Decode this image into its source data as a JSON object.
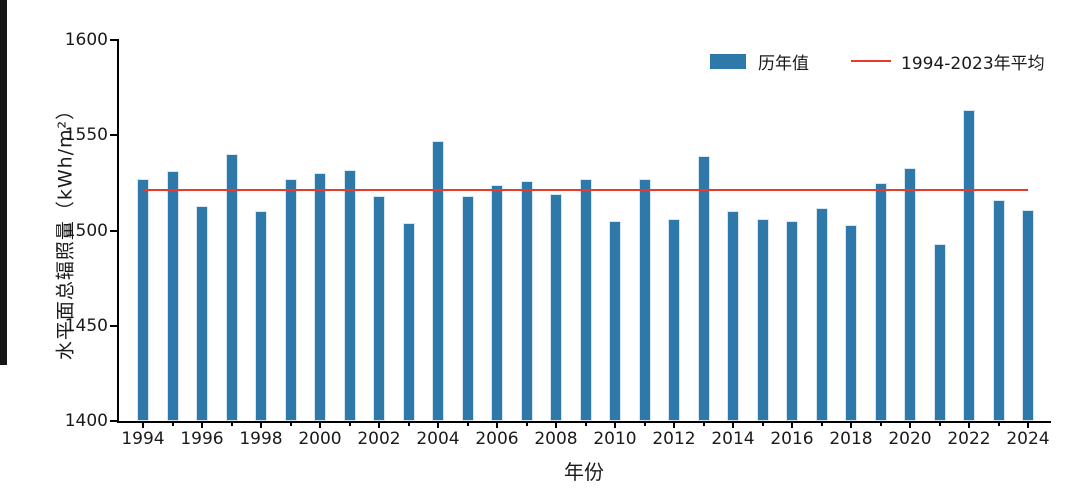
{
  "chart_data": {
    "type": "bar",
    "title": "",
    "xlabel": "年份",
    "ylabel": "水平面总辐照量（kWh/m²）",
    "x": [
      1994,
      1995,
      1996,
      1997,
      1998,
      1999,
      2000,
      2001,
      2002,
      2003,
      2004,
      2005,
      2006,
      2007,
      2008,
      2009,
      2010,
      2011,
      2012,
      2013,
      2014,
      2015,
      2016,
      2017,
      2018,
      2019,
      2020,
      2021,
      2022,
      2023,
      2024
    ],
    "series": [
      {
        "name": "历年值",
        "type": "bar",
        "values": [
          1527,
          1531,
          1513,
          1540,
          1510,
          1527,
          1530,
          1532,
          1518,
          1504,
          1547,
          1518,
          1524,
          1526,
          1519,
          1527,
          1505,
          1527,
          1506,
          1539,
          1510,
          1506,
          1505,
          1512,
          1503,
          1525,
          1533,
          1493,
          1563,
          1516,
          1511
        ]
      },
      {
        "name": "1994-2023年平均",
        "type": "line",
        "value": 1521.2
      }
    ],
    "ylim": [
      1400,
      1600
    ],
    "yticks": [
      1400,
      1450,
      1500,
      1550,
      1600
    ],
    "xtick_labels": [
      "1994",
      "1996",
      "1998",
      "2000",
      "2002",
      "2004",
      "2006",
      "2008",
      "2010",
      "2012",
      "2014",
      "2016",
      "2018",
      "2020",
      "2022",
      "2024"
    ],
    "legend_position": "top-right",
    "grid": false,
    "bar_color": "#2E79A9",
    "bar_edge_color": "#d8e6f0",
    "line_color": "#E83B2E",
    "axis_color": "#000000"
  }
}
